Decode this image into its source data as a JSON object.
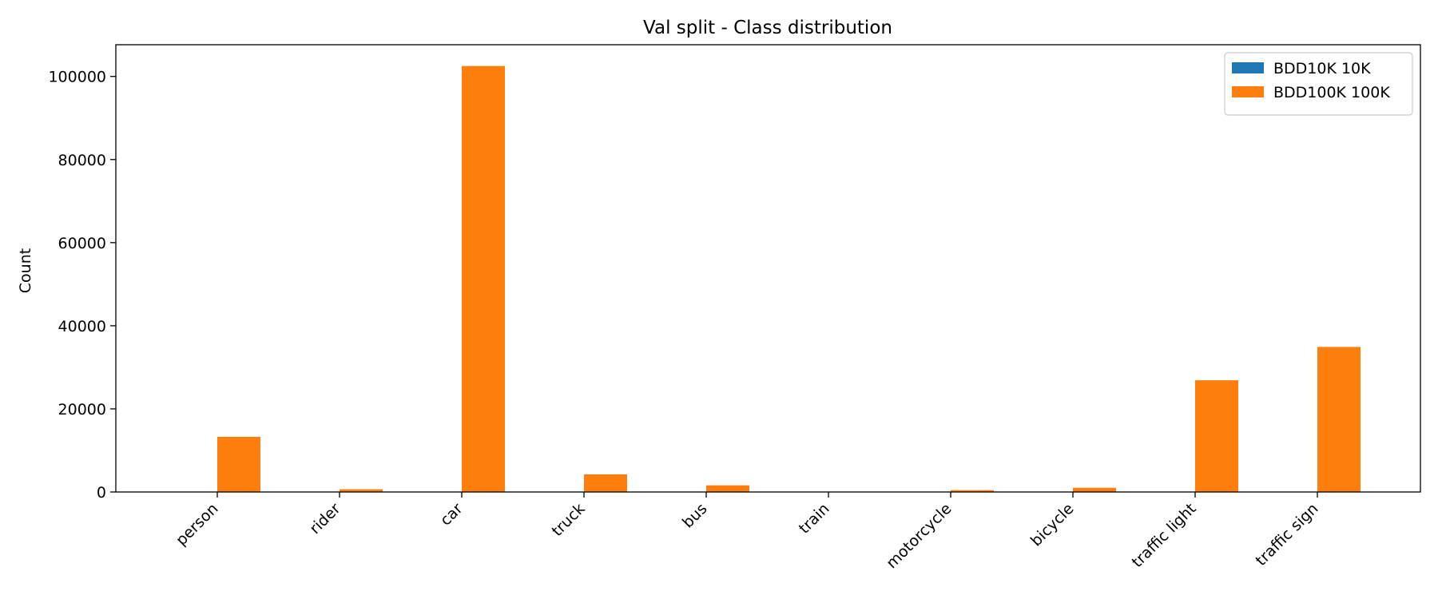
{
  "chart_data": {
    "type": "bar",
    "title": "Val split - Class distribution",
    "xlabel": "",
    "ylabel": "Count",
    "categories": [
      "person",
      "rider",
      "car",
      "truck",
      "bus",
      "train",
      "motorcycle",
      "bicycle",
      "traffic light",
      "traffic sign"
    ],
    "series": [
      {
        "name": "BDD10K 10K",
        "color": "#1f77b4",
        "values": [
          0,
          0,
          0,
          0,
          0,
          0,
          0,
          0,
          0,
          0
        ]
      },
      {
        "name": "BDD100K 100K",
        "color": "#ff7f0e",
        "values": [
          13262,
          649,
          102506,
          4245,
          1597,
          15,
          452,
          1007,
          26885,
          34908
        ]
      }
    ],
    "ylim": [
      0,
      107630
    ],
    "yticks": [
      0,
      20000,
      40000,
      60000,
      80000,
      100000
    ],
    "ytick_labels": [
      "0",
      "20000",
      "40000",
      "60000",
      "80000",
      "100000"
    ],
    "grid": false,
    "legend_position": "top-right"
  }
}
